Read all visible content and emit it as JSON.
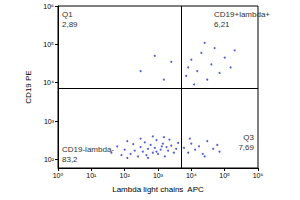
{
  "chart_data": {
    "type": "scatter",
    "log": true,
    "grid": false,
    "x_label": "Lambda light chains  APC",
    "y_label": "CD19 PE",
    "color": "#2236c8",
    "xlim": [
      1,
      1000000
    ],
    "xticks": [
      {
        "value": 1,
        "label": "10⁰"
      },
      {
        "value": 10,
        "label": "10¹"
      },
      {
        "value": 100,
        "label": "10²"
      },
      {
        "value": 1000,
        "label": "10³"
      },
      {
        "value": 10000,
        "label": "10⁴"
      },
      {
        "value": 100000,
        "label": "10⁵"
      },
      {
        "value": 1000000,
        "label": "10⁶"
      }
    ],
    "ylim": [
      60,
      1000000
    ],
    "yticks": [
      {
        "value": 100,
        "label": "10²"
      },
      {
        "value": 1000,
        "label": "10³"
      },
      {
        "value": 10000,
        "label": "10⁴"
      },
      {
        "value": 100000,
        "label": "10⁵"
      },
      {
        "value": 1000000,
        "label": "10⁶"
      }
    ],
    "gates": {
      "x": 5000,
      "y": 7000
    },
    "quadrants": [
      {
        "name": "Q1",
        "percent": 2.89,
        "percent_label": "2,89"
      },
      {
        "name": "CD19+lambda+",
        "percent": 6.21,
        "percent_label": "6,21"
      },
      {
        "name": "CD19-lambda-",
        "percent": 83.2,
        "percent_label": "83,2"
      },
      {
        "name": "Q3",
        "percent": 7.69,
        "percent_label": "7,69"
      }
    ],
    "points": [
      [
        40,
        150
      ],
      [
        60,
        220
      ],
      [
        80,
        130
      ],
      [
        100,
        180
      ],
      [
        120,
        300
      ],
      [
        150,
        140
      ],
      [
        180,
        250
      ],
      [
        200,
        170
      ],
      [
        250,
        120
      ],
      [
        300,
        210
      ],
      [
        350,
        160
      ],
      [
        400,
        280
      ],
      [
        450,
        130
      ],
      [
        500,
        190
      ],
      [
        600,
        240
      ],
      [
        700,
        150
      ],
      [
        800,
        200
      ],
      [
        900,
        320
      ],
      [
        1000,
        140
      ],
      [
        1200,
        180
      ],
      [
        1400,
        260
      ],
      [
        1600,
        120
      ],
      [
        1800,
        210
      ],
      [
        2000,
        170
      ],
      [
        2500,
        230
      ],
      [
        3000,
        150
      ],
      [
        3500,
        190
      ],
      [
        4000,
        270
      ],
      [
        300,
        350
      ],
      [
        700,
        400
      ],
      [
        1500,
        380
      ],
      [
        120,
        110
      ],
      [
        2200,
        330
      ],
      [
        500,
        110
      ],
      [
        900,
        160
      ],
      [
        1300,
        220
      ],
      [
        6000,
        200
      ],
      [
        8000,
        150
      ],
      [
        10000,
        260
      ],
      [
        13000,
        180
      ],
      [
        17000,
        220
      ],
      [
        22000,
        140
      ],
      [
        30000,
        300
      ],
      [
        45000,
        190
      ],
      [
        60000,
        240
      ],
      [
        9000,
        350
      ],
      [
        25000,
        120
      ],
      [
        70000,
        160
      ],
      [
        7000,
        15000
      ],
      [
        10000,
        40000
      ],
      [
        15000,
        20000
      ],
      [
        20000,
        60000
      ],
      [
        30000,
        12000
      ],
      [
        40000,
        30000
      ],
      [
        50000,
        80000
      ],
      [
        70000,
        18000
      ],
      [
        100000,
        45000
      ],
      [
        150000,
        25000
      ],
      [
        12000,
        9000
      ],
      [
        25000,
        110000
      ],
      [
        200000,
        70000
      ],
      [
        8000,
        25000
      ],
      [
        300,
        20000
      ],
      [
        800,
        50000
      ],
      [
        1500,
        12000
      ],
      [
        2500,
        35000
      ]
    ]
  }
}
